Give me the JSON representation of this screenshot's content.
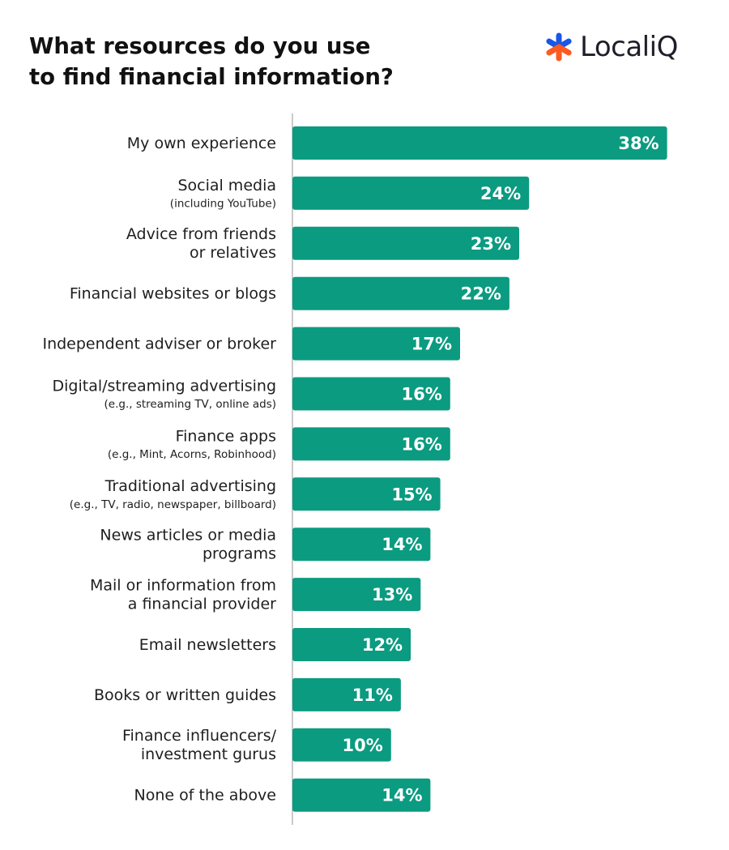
{
  "header": {
    "title_line1": "What resources do you use",
    "title_line2": "to find financial information?",
    "logo_text": "LocaliQ",
    "logo_icon": "asterisk-icon"
  },
  "colors": {
    "bar": "#0b9b80",
    "axis": "#b8b8b8",
    "logo_blue": "#1a56e6",
    "logo_orange": "#ff5a1f"
  },
  "chart_data": {
    "type": "bar",
    "orientation": "horizontal",
    "title": "What resources do you use to find financial information?",
    "xlabel": "",
    "ylabel": "",
    "xlim": [
      0,
      40
    ],
    "grid": false,
    "categories": [
      {
        "label": [
          "My own experience"
        ],
        "sub": ""
      },
      {
        "label": [
          "Social media"
        ],
        "sub": "(including YouTube)"
      },
      {
        "label": [
          "Advice from friends",
          "or relatives"
        ],
        "sub": ""
      },
      {
        "label": [
          "Financial websites or blogs"
        ],
        "sub": ""
      },
      {
        "label": [
          "Independent adviser or broker"
        ],
        "sub": ""
      },
      {
        "label": [
          "Digital/streaming advertising"
        ],
        "sub": "(e.g., streaming TV, online ads)"
      },
      {
        "label": [
          "Finance apps"
        ],
        "sub": "(e.g., Mint, Acorns, Robinhood)"
      },
      {
        "label": [
          "Traditional advertising"
        ],
        "sub": "(e.g., TV, radio, newspaper, billboard)"
      },
      {
        "label": [
          "News articles or media",
          "programs"
        ],
        "sub": ""
      },
      {
        "label": [
          "Mail or information from",
          "a financial provider"
        ],
        "sub": ""
      },
      {
        "label": [
          "Email newsletters"
        ],
        "sub": ""
      },
      {
        "label": [
          "Books or written guides"
        ],
        "sub": ""
      },
      {
        "label": [
          "Finance influencers/",
          "investment gurus"
        ],
        "sub": ""
      },
      {
        "label": [
          "None of the above"
        ],
        "sub": ""
      }
    ],
    "values": [
      38,
      24,
      23,
      22,
      17,
      16,
      16,
      15,
      14,
      13,
      12,
      11,
      10,
      14
    ],
    "value_labels": [
      "38%",
      "24%",
      "23%",
      "22%",
      "17%",
      "16%",
      "16%",
      "15%",
      "14%",
      "13%",
      "12%",
      "11%",
      "10%",
      "14%"
    ]
  }
}
